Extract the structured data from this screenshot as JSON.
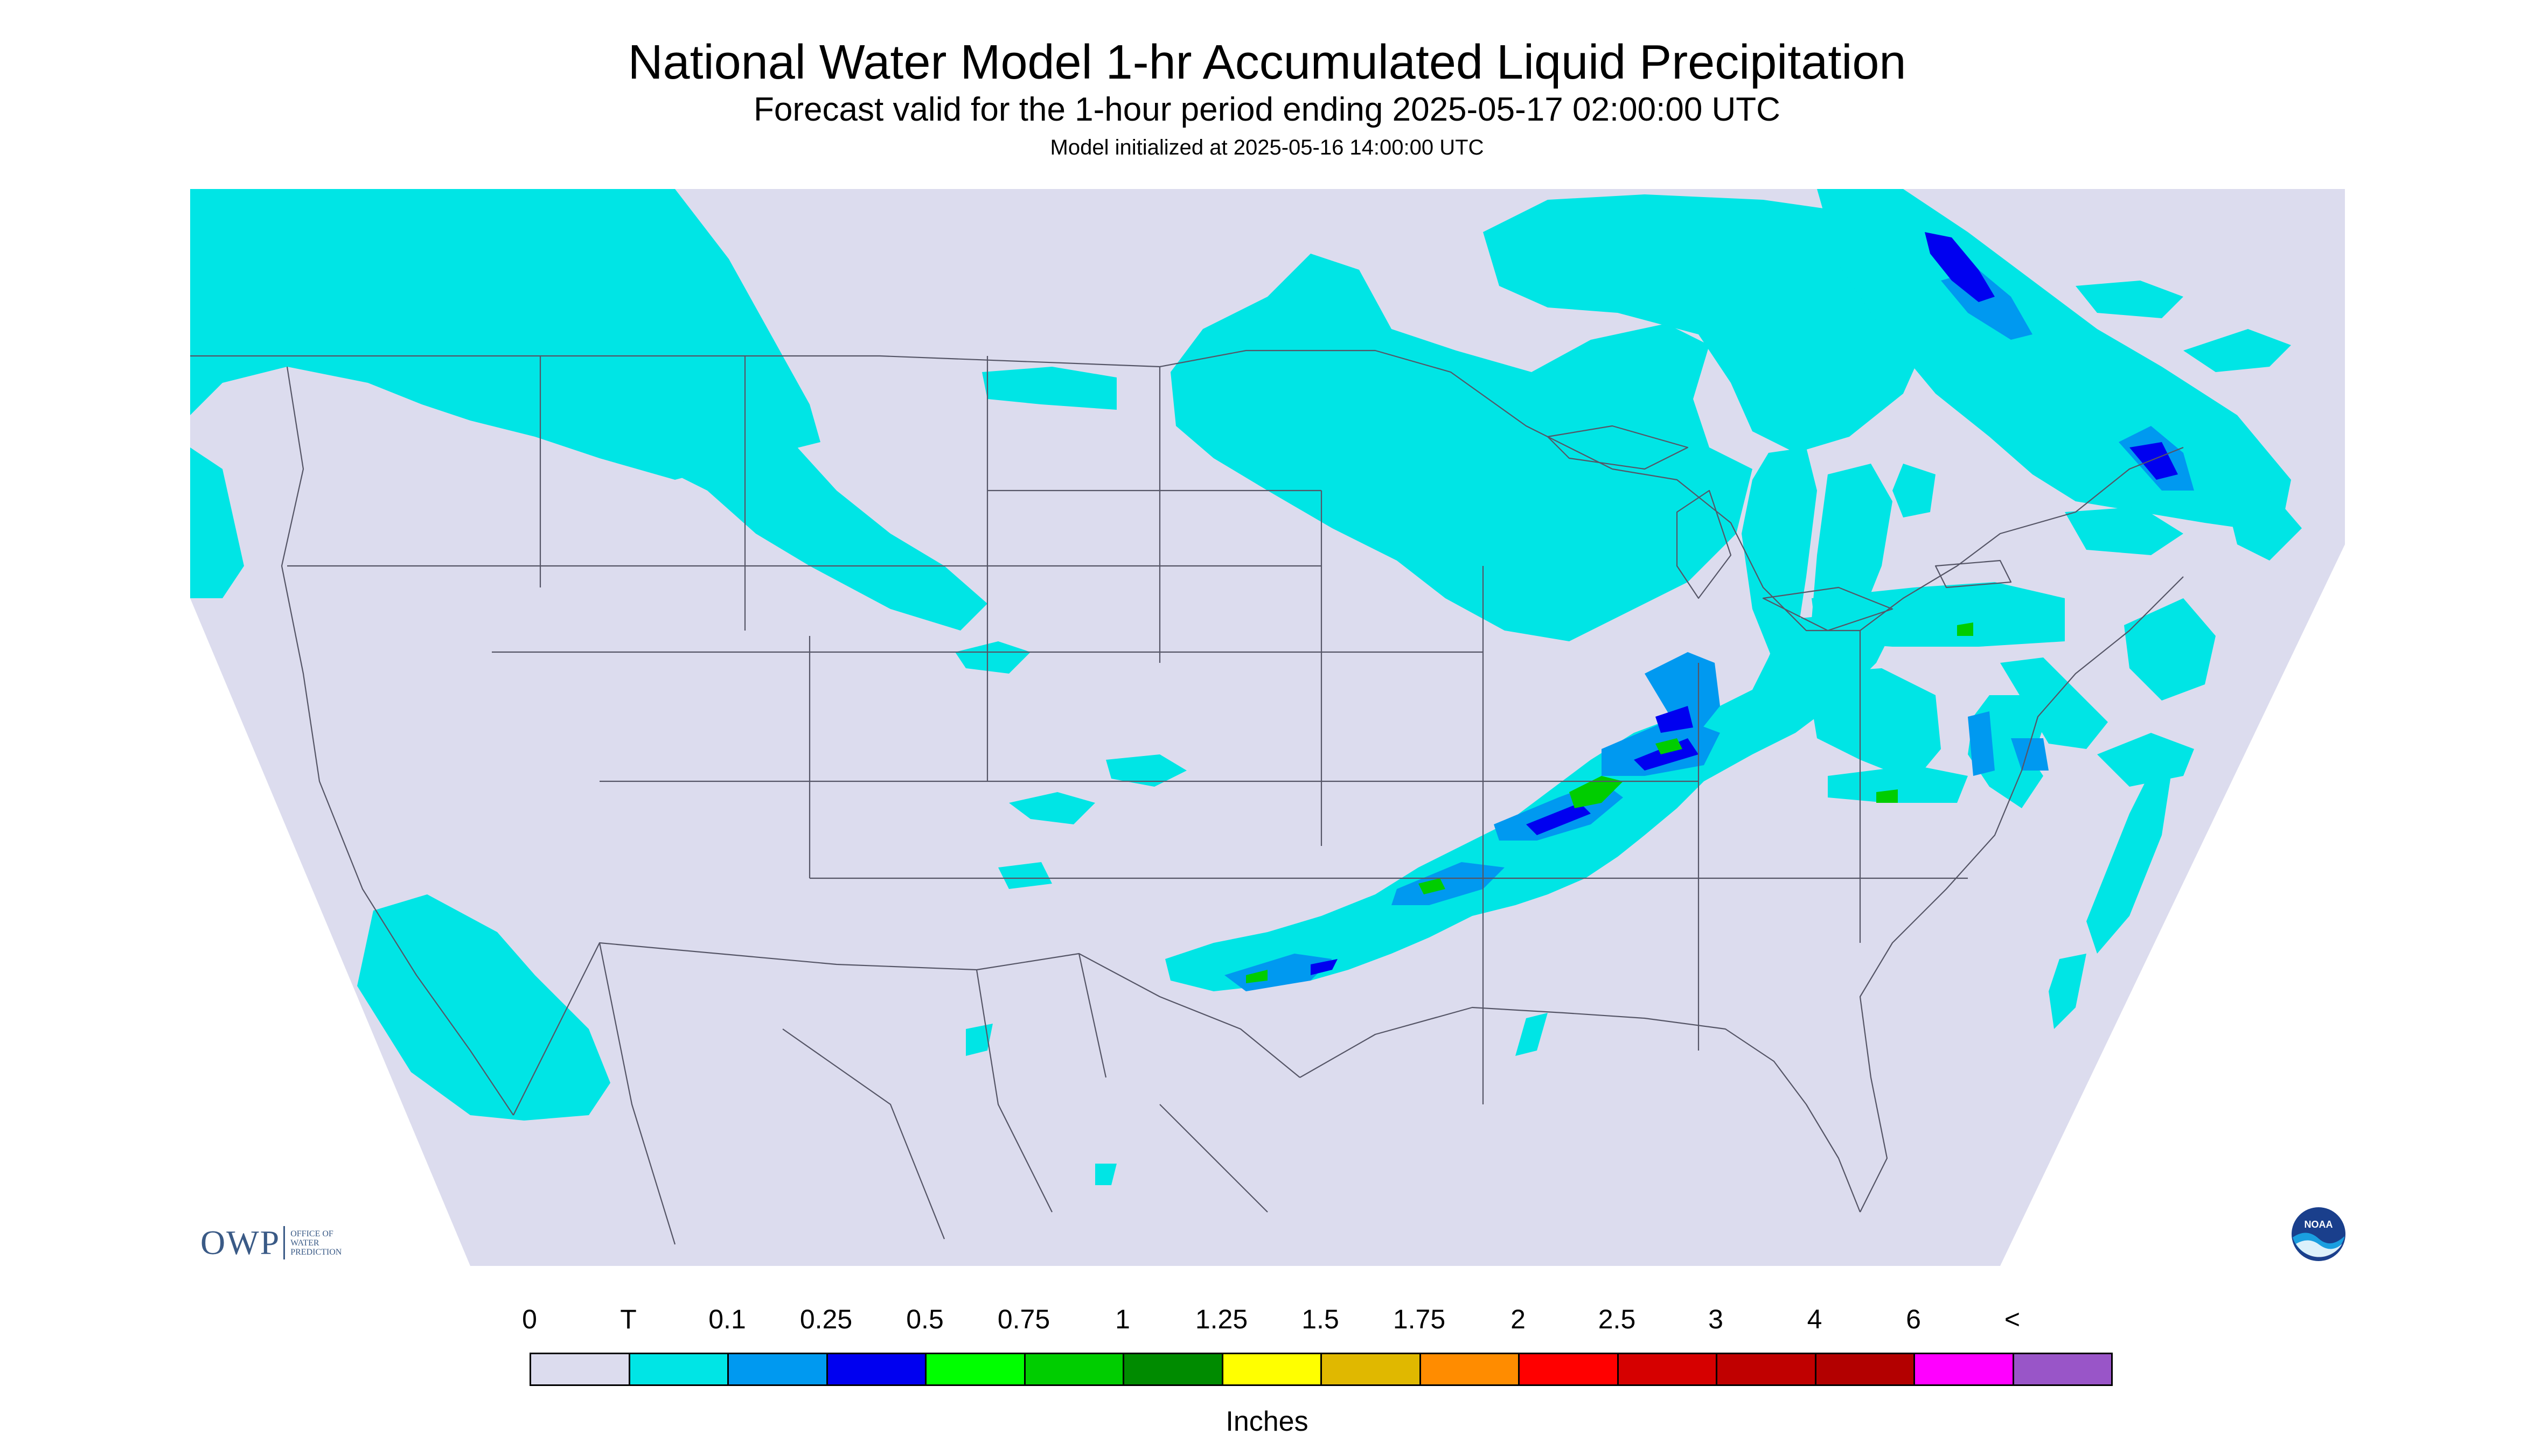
{
  "title": "National Water Model 1-hr Accumulated Liquid Precipitation",
  "subtitle": "Forecast valid for the 1-hour period ending 2025-05-17 02:00:00 UTC",
  "init_text": "Model initialized at 2025-05-16 14:00:00 UTC",
  "legend": {
    "labels": [
      "0",
      "T",
      "0.1",
      "0.25",
      "0.5",
      "0.75",
      "1",
      "1.25",
      "1.5",
      "1.75",
      "2",
      "2.5",
      "3",
      "4",
      "6",
      "<"
    ],
    "colors": [
      "#dcdcee",
      "#00e5e5",
      "#0099f0",
      "#0000f0",
      "#00ff00",
      "#00cd00",
      "#008b00",
      "#ffff00",
      "#e0b800",
      "#ff8c00",
      "#ff0000",
      "#d60000",
      "#c00000",
      "#b30000",
      "#ff00ff",
      "#9955c8"
    ],
    "units": "Inches"
  },
  "logos": {
    "owp_letters": "OWP",
    "owp_line1": "OFFICE OF",
    "owp_line2": "WATER",
    "owp_line3": "PREDICTION",
    "noaa_text": "NOAA"
  },
  "colors": {
    "no_precip": "#dcdcee",
    "trace": "#00e5e5",
    "background": "#ffffff"
  }
}
